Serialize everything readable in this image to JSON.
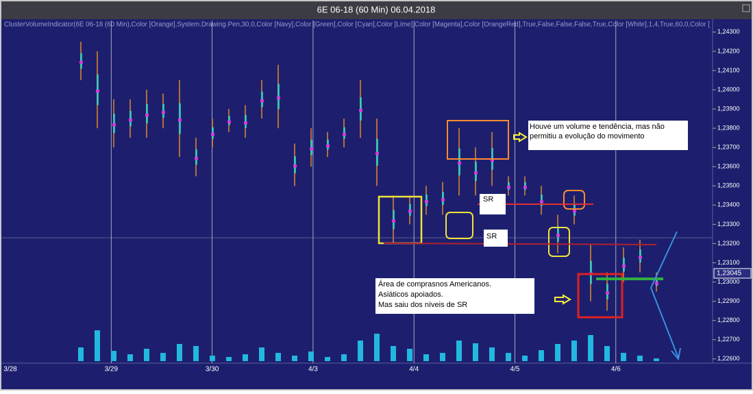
{
  "window_title": "6E 06-18 (60 Min)  06.04.2018",
  "indicator_label": "ClusterVolumeIndicator(6E 06-18 (60 Min),Color [Orange],System.Drawing.Pen,30,0,Color [Navy],Color [Green],Color [Cyan],Color [Lime],Color [Magenta],Color [OrangeRed],True,False,False,False,True,Color [White],1,4,True,60,0,Color [",
  "annotations": {
    "note_top": "Houve um volume e tendência, mas não permitiu a evolução do movimento",
    "sr_1": "SR",
    "sr_2": "SR",
    "note_bottom": [
      "Área de comprasnos Americanos.",
      "Asiáticos apoiados.",
      "Mas saiu dos níveis de SR"
    ]
  },
  "chart_data": {
    "type": "hilo",
    "date_labels": [
      "3/28",
      "3/29",
      "3/30",
      "4/3",
      "4/4",
      "4/5",
      "4/6"
    ],
    "lows": [
      1.2405,
      1.238,
      1.237,
      1.2375,
      1.2375,
      1.238,
      1.2365,
      1.2355,
      1.237,
      1.2378,
      1.2375,
      1.2385,
      1.238,
      1.235,
      1.236,
      1.2365,
      1.237,
      1.2375,
      1.235,
      1.232,
      1.233,
      1.2335,
      1.2335,
      1.2345,
      1.2345,
      1.235,
      1.2345,
      1.2345,
      1.2335,
      1.2315,
      1.233,
      1.229,
      1.2285,
      1.23,
      1.2305,
      1.2295
    ],
    "highs": [
      1.2425,
      1.242,
      1.2395,
      1.2395,
      1.24,
      1.2398,
      1.2405,
      1.2375,
      1.2385,
      1.239,
      1.2392,
      1.2405,
      1.2413,
      1.2372,
      1.238,
      1.2378,
      1.2385,
      1.2405,
      1.2385,
      1.2345,
      1.2345,
      1.235,
      1.2352,
      1.238,
      1.237,
      1.2378,
      1.2355,
      1.2355,
      1.235,
      1.2335,
      1.2345,
      1.232,
      1.2305,
      1.2318,
      1.2322,
      1.2305
    ],
    "volumes": [
      20,
      45,
      15,
      10,
      18,
      12,
      25,
      22,
      8,
      6,
      10,
      20,
      12,
      8,
      14,
      6,
      10,
      30,
      40,
      22,
      18,
      10,
      12,
      30,
      26,
      20,
      12,
      8,
      16,
      25,
      30,
      38,
      22,
      12,
      8,
      4
    ],
    "ylim": [
      1.2256,
      1.2436
    ],
    "yticks": [
      {
        "value": 1.226,
        "label": "1,22600"
      },
      {
        "value": 1.227,
        "label": "1,22700"
      },
      {
        "value": 1.228,
        "label": "1,22800"
      },
      {
        "value": 1.229,
        "label": "1,22900"
      },
      {
        "value": 1.23,
        "label": "1,23000"
      },
      {
        "value": 1.231,
        "label": "1,23100"
      },
      {
        "value": 1.232,
        "label": "1,23200"
      },
      {
        "value": 1.233,
        "label": "1,23300"
      },
      {
        "value": 1.234,
        "label": "1,23400"
      },
      {
        "value": 1.235,
        "label": "1,23500"
      },
      {
        "value": 1.236,
        "label": "1,23600"
      },
      {
        "value": 1.237,
        "label": "1,23700"
      },
      {
        "value": 1.238,
        "label": "1,23800"
      },
      {
        "value": 1.239,
        "label": "1,23900"
      },
      {
        "value": 1.24,
        "label": "1,24000"
      },
      {
        "value": 1.241,
        "label": "1,24100"
      },
      {
        "value": 1.242,
        "label": "1,24200"
      },
      {
        "value": 1.243,
        "label": "1,24300"
      }
    ],
    "last_price": {
      "value": 1.23045,
      "label": "1,23045"
    },
    "volume_ylim": [
      0,
      50
    ],
    "color": "#e08a2c",
    "volume_color": "#22b8e0"
  }
}
